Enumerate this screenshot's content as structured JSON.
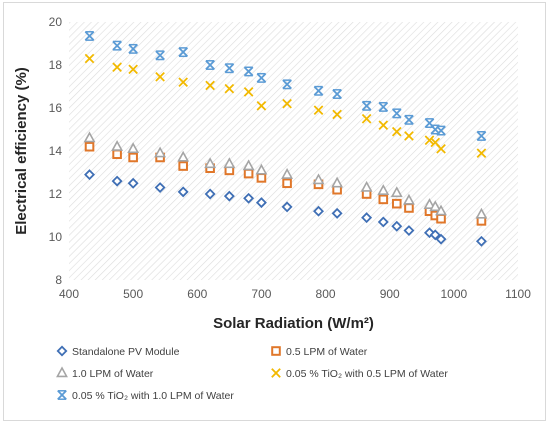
{
  "chart_data": {
    "type": "scatter",
    "xlabel": "Solar Radiation (W/m²)",
    "ylabel": "Electrical efficiency (%)",
    "xlim": [
      400,
      1100
    ],
    "ylim": [
      8,
      20
    ],
    "xticks": [
      400,
      500,
      600,
      700,
      800,
      900,
      1000,
      1100
    ],
    "yticks": [
      8,
      10,
      12,
      14,
      16,
      18,
      20
    ],
    "grid": false,
    "background": "diagonal hatch",
    "legend_position": "bottom",
    "series": [
      {
        "name": "Standalone PV Module",
        "marker": "diamond-open",
        "color": "#3f6fb5",
        "x": [
          432,
          475,
          500,
          542,
          578,
          620,
          650,
          680,
          700,
          740,
          789,
          818,
          864,
          890,
          911,
          930,
          962,
          971,
          980,
          1043
        ],
        "y": [
          12.9,
          12.6,
          12.5,
          12.3,
          12.1,
          12.0,
          11.9,
          11.8,
          11.6,
          11.4,
          11.2,
          11.1,
          10.9,
          10.7,
          10.5,
          10.3,
          10.2,
          10.1,
          9.9,
          9.8
        ]
      },
      {
        "name": "0.5 LPM of Water",
        "marker": "square-open",
        "color": "#e0772a",
        "x": [
          432,
          475,
          500,
          542,
          578,
          620,
          650,
          680,
          700,
          740,
          789,
          818,
          864,
          890,
          911,
          930,
          962,
          971,
          980,
          1043
        ],
        "y": [
          14.2,
          13.85,
          13.7,
          13.7,
          13.3,
          13.2,
          13.1,
          12.95,
          12.75,
          12.5,
          12.45,
          12.2,
          12.0,
          11.75,
          11.55,
          11.35,
          11.2,
          11.0,
          10.85,
          10.75
        ]
      },
      {
        "name": "1.0 LPM of Water",
        "marker": "triangle-open",
        "color": "#a5a5a5",
        "x": [
          432,
          475,
          500,
          542,
          578,
          620,
          650,
          680,
          700,
          740,
          789,
          818,
          864,
          890,
          911,
          930,
          962,
          971,
          980,
          1043
        ],
        "y": [
          14.6,
          14.2,
          14.1,
          13.9,
          13.7,
          13.4,
          13.4,
          13.3,
          13.1,
          12.9,
          12.65,
          12.5,
          12.3,
          12.15,
          12.05,
          11.7,
          11.5,
          11.4,
          11.2,
          11.05
        ]
      },
      {
        "name": "0.05 % TiO₂ with 0.5 LPM of Water",
        "marker": "x",
        "color": "#f2b900",
        "x": [
          432,
          475,
          500,
          542,
          578,
          620,
          650,
          680,
          700,
          740,
          789,
          818,
          864,
          890,
          911,
          930,
          962,
          971,
          980,
          1043
        ],
        "y": [
          18.3,
          17.9,
          17.8,
          17.45,
          17.2,
          17.05,
          16.9,
          16.75,
          16.1,
          16.2,
          15.9,
          15.7,
          15.5,
          15.2,
          14.9,
          14.7,
          14.5,
          14.4,
          14.1,
          13.9
        ]
      },
      {
        "name": "0.05 % TiO₂ with 1.0 LPM of Water",
        "marker": "asterisk",
        "color": "#5b9bd5",
        "x": [
          432,
          475,
          500,
          542,
          578,
          620,
          650,
          680,
          700,
          740,
          789,
          818,
          864,
          890,
          911,
          930,
          962,
          971,
          980,
          1043
        ],
        "y": [
          19.35,
          18.9,
          18.75,
          18.45,
          18.6,
          18.0,
          17.85,
          17.7,
          17.4,
          17.1,
          16.8,
          16.65,
          16.1,
          16.05,
          15.75,
          15.45,
          15.3,
          15.0,
          14.95,
          14.7
        ]
      }
    ]
  }
}
